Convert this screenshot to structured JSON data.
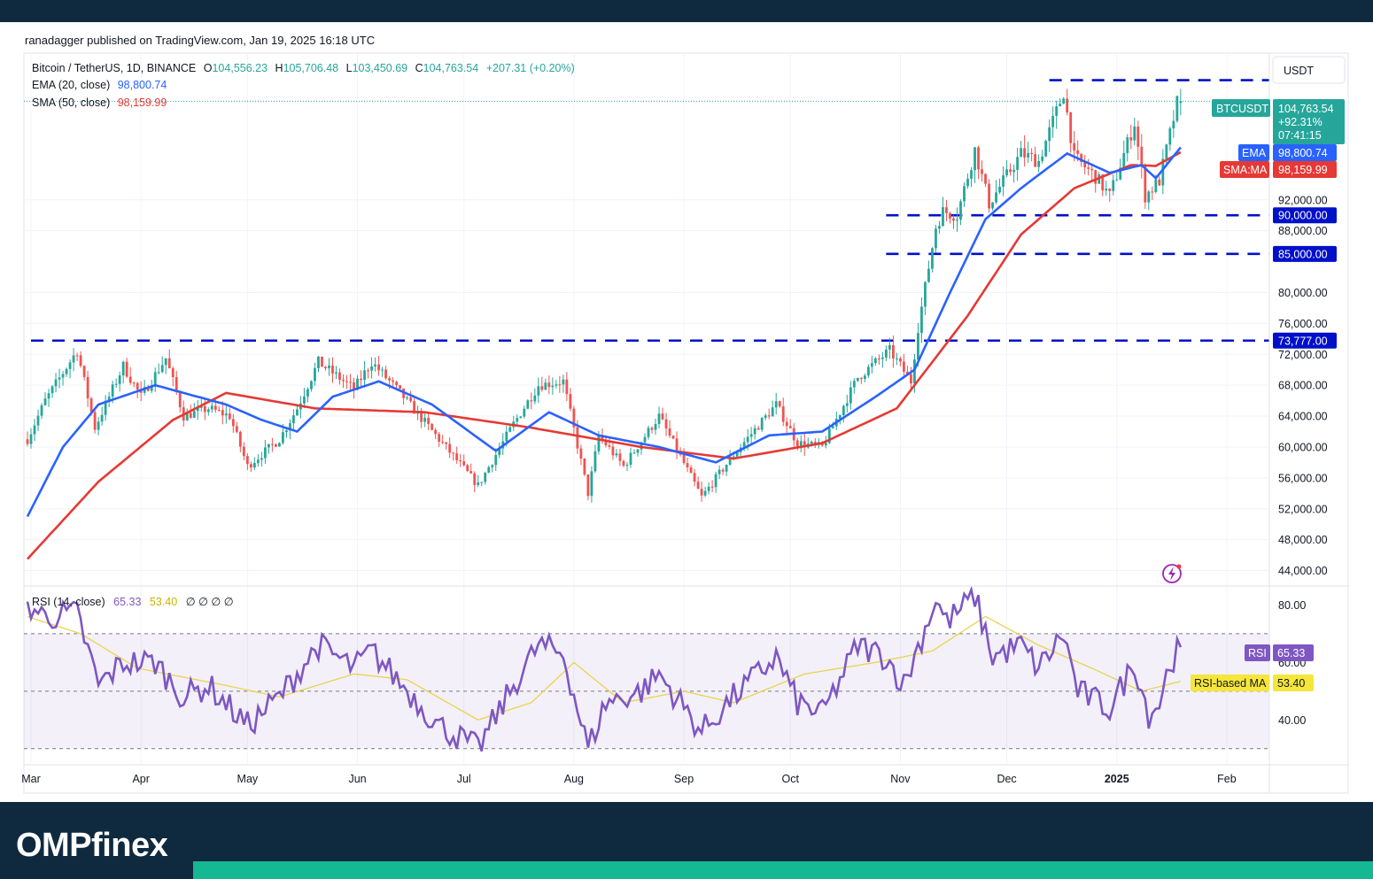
{
  "publication": "ranadagger published on TradingView.com, Jan 19, 2025 16:18 UTC",
  "brand": "OMPfinex",
  "legend": {
    "symbol": "Bitcoin / TetherUS, 1D, BINANCE",
    "o_label": "O",
    "o_value": "104,556.23",
    "h_label": "H",
    "h_value": "105,706.48",
    "l_label": "L",
    "l_value": "103,450.69",
    "c_label": "C",
    "c_value": "104,763.54",
    "change": "+207.31 (+0.20%)",
    "ema_label": "EMA (20, close)",
    "ema_value": "98,800.74",
    "sma_label": "SMA (50, close)",
    "sma_value": "98,159.99"
  },
  "rsi_legend": {
    "label": "RSI (14, close)",
    "value": "65.33",
    "ma_value": "53.40",
    "extras": "∅  ∅  ∅  ∅"
  },
  "currency": "USDT",
  "price_tag": {
    "symbol": "BTCUSDT",
    "price": "104,763.54",
    "pct": "+92.31%",
    "countdown": "07:41:15"
  },
  "ema_tag": {
    "label": "EMA",
    "value": "98,800.74"
  },
  "sma_tag": {
    "label": "SMA:MA",
    "value": "98,159.99"
  },
  "rsi_tag": {
    "label": "RSI",
    "value": "65.33"
  },
  "rsi_ma_tag": {
    "label": "RSI-based MA",
    "value": "53.40"
  },
  "icons": {
    "flash": "flash-icon"
  },
  "colors": {
    "up": "#26a69a",
    "down": "#ef5350",
    "ema": "#2962ff",
    "sma": "#e53935",
    "level": "#0010c8",
    "rsi": "#7e57c2",
    "rsi_ma": "#e8d44d",
    "header": "#0f2a3f",
    "accent": "#14b892"
  },
  "chart_data": {
    "type": "line",
    "title": "Bitcoin / TetherUS, 1D, BINANCE",
    "price_axis_ticks": [
      {
        "value": 92000,
        "label": "92,000.00"
      },
      {
        "value": 88000,
        "label": "88,000.00"
      },
      {
        "value": 80000,
        "label": "80,000.00"
      },
      {
        "value": 76000,
        "label": "76,000.00"
      },
      {
        "value": 72000,
        "label": "72,000.00"
      },
      {
        "value": 68000,
        "label": "68,000.00"
      },
      {
        "value": 64000,
        "label": "64,000.00"
      },
      {
        "value": 60000,
        "label": "60,000.00"
      },
      {
        "value": 56000,
        "label": "56,000.00"
      },
      {
        "value": 52000,
        "label": "52,000.00"
      },
      {
        "value": 48000,
        "label": "48,000.00"
      },
      {
        "value": 44000,
        "label": "44,000.00"
      }
    ],
    "x_axis_ticks": [
      {
        "date": "2024-03-01",
        "label": "Mar"
      },
      {
        "date": "2024-04-01",
        "label": "Apr"
      },
      {
        "date": "2024-05-01",
        "label": "May"
      },
      {
        "date": "2024-06-01",
        "label": "Jun"
      },
      {
        "date": "2024-07-01",
        "label": "Jul"
      },
      {
        "date": "2024-08-01",
        "label": "Aug"
      },
      {
        "date": "2024-09-01",
        "label": "Sep"
      },
      {
        "date": "2024-10-01",
        "label": "Oct"
      },
      {
        "date": "2024-11-01",
        "label": "Nov"
      },
      {
        "date": "2024-12-01",
        "label": "Dec"
      },
      {
        "date": "2025-01-01",
        "label": "2025"
      },
      {
        "date": "2025-02-01",
        "label": "Feb"
      }
    ],
    "x_range": [
      "2024-02-28",
      "2025-02-13"
    ],
    "price_range": [
      42000,
      111000
    ],
    "horizontal_levels": [
      {
        "value": 107500,
        "label": "",
        "from": "2024-12-13",
        "to": "2025-02-14"
      },
      {
        "value": 90000,
        "label": "90,000.00",
        "from": "2024-10-28",
        "to": "2025-02-14"
      },
      {
        "value": 85000,
        "label": "85,000.00",
        "from": "2024-10-28",
        "to": "2025-02-14"
      },
      {
        "value": 73777,
        "label": "73,777.00",
        "from": "2024-03-01",
        "to": "2025-02-14"
      }
    ],
    "price_anchors": [
      [
        "2024-02-29",
        61000
      ],
      [
        "2024-03-05",
        66000
      ],
      [
        "2024-03-14",
        72500
      ],
      [
        "2024-03-19",
        62500
      ],
      [
        "2024-03-27",
        70500
      ],
      [
        "2024-04-01",
        66500
      ],
      [
        "2024-04-08",
        71500
      ],
      [
        "2024-04-13",
        64000
      ],
      [
        "2024-04-20",
        65000
      ],
      [
        "2024-04-26",
        64000
      ],
      [
        "2024-05-01",
        57500
      ],
      [
        "2024-05-10",
        61000
      ],
      [
        "2024-05-15",
        65000
      ],
      [
        "2024-05-21",
        71000
      ],
      [
        "2024-05-31",
        67500
      ],
      [
        "2024-06-05",
        71000
      ],
      [
        "2024-06-13",
        67000
      ],
      [
        "2024-06-24",
        61000
      ],
      [
        "2024-07-05",
        55000
      ],
      [
        "2024-07-15",
        63000
      ],
      [
        "2024-07-22",
        68000
      ],
      [
        "2024-07-29",
        68500
      ],
      [
        "2024-08-05",
        54000
      ],
      [
        "2024-08-08",
        61500
      ],
      [
        "2024-08-15",
        57500
      ],
      [
        "2024-08-25",
        64000
      ],
      [
        "2024-09-06",
        53500
      ],
      [
        "2024-09-15",
        59000
      ],
      [
        "2024-09-27",
        65500
      ],
      [
        "2024-10-03",
        60500
      ],
      [
        "2024-10-10",
        60000
      ],
      [
        "2024-10-20",
        69000
      ],
      [
        "2024-10-29",
        72500
      ],
      [
        "2024-11-04",
        68500
      ],
      [
        "2024-11-06",
        75500
      ],
      [
        "2024-11-11",
        88500
      ],
      [
        "2024-11-13",
        90500
      ],
      [
        "2024-11-17",
        90000
      ],
      [
        "2024-11-22",
        98500
      ],
      [
        "2024-11-26",
        91500
      ],
      [
        "2024-12-05",
        98000
      ],
      [
        "2024-12-10",
        97000
      ],
      [
        "2024-12-17",
        106000
      ],
      [
        "2024-12-20",
        97500
      ],
      [
        "2024-12-26",
        95000
      ],
      [
        "2024-12-30",
        92500
      ],
      [
        "2025-01-06",
        102000
      ],
      [
        "2025-01-09",
        92500
      ],
      [
        "2025-01-13",
        94500
      ],
      [
        "2025-01-16",
        100500
      ],
      [
        "2025-01-18",
        104500
      ],
      [
        "2025-01-19",
        104763.54
      ]
    ],
    "ema_anchors": [
      [
        "2024-02-29",
        51000
      ],
      [
        "2024-03-10",
        60000
      ],
      [
        "2024-03-20",
        65500
      ],
      [
        "2024-04-05",
        68000
      ],
      [
        "2024-04-25",
        65500
      ],
      [
        "2024-05-05",
        63500
      ],
      [
        "2024-05-15",
        62000
      ],
      [
        "2024-05-25",
        66500
      ],
      [
        "2024-06-07",
        68500
      ],
      [
        "2024-06-22",
        65500
      ],
      [
        "2024-07-10",
        59500
      ],
      [
        "2024-07-25",
        64500
      ],
      [
        "2024-08-08",
        61500
      ],
      [
        "2024-08-25",
        60000
      ],
      [
        "2024-09-10",
        58000
      ],
      [
        "2024-09-25",
        61500
      ],
      [
        "2024-10-10",
        62000
      ],
      [
        "2024-10-25",
        66500
      ],
      [
        "2024-11-05",
        70000
      ],
      [
        "2024-11-15",
        80000
      ],
      [
        "2024-11-25",
        89500
      ],
      [
        "2024-12-05",
        93500
      ],
      [
        "2024-12-18",
        98000
      ],
      [
        "2024-12-30",
        95500
      ],
      [
        "2025-01-08",
        96500
      ],
      [
        "2025-01-12",
        94800
      ],
      [
        "2025-01-19",
        98800.74
      ]
    ],
    "sma_anchors": [
      [
        "2024-02-29",
        45500
      ],
      [
        "2024-03-20",
        55500
      ],
      [
        "2024-04-10",
        63500
      ],
      [
        "2024-04-25",
        67000
      ],
      [
        "2024-05-20",
        65000
      ],
      [
        "2024-06-20",
        64500
      ],
      [
        "2024-07-20",
        62500
      ],
      [
        "2024-08-20",
        60000
      ],
      [
        "2024-09-15",
        58500
      ],
      [
        "2024-10-10",
        60500
      ],
      [
        "2024-10-31",
        65000
      ],
      [
        "2024-11-20",
        77000
      ],
      [
        "2024-12-05",
        87500
      ],
      [
        "2024-12-20",
        93500
      ],
      [
        "2025-01-05",
        96500
      ],
      [
        "2025-01-12",
        96400
      ],
      [
        "2025-01-19",
        98159.99
      ]
    ],
    "rsi": {
      "ticks": [
        {
          "value": 80,
          "label": "80.00"
        },
        {
          "value": 60,
          "label": "60.00"
        },
        {
          "value": 40,
          "label": "40.00"
        }
      ],
      "range": [
        25,
        86
      ],
      "band": [
        30,
        70
      ],
      "midline": 50,
      "anchors": [
        [
          "2024-02-29",
          80
        ],
        [
          "2024-03-05",
          76
        ],
        [
          "2024-03-14",
          77
        ],
        [
          "2024-03-20",
          52
        ],
        [
          "2024-03-27",
          60
        ],
        [
          "2024-04-05",
          60
        ],
        [
          "2024-04-13",
          48
        ],
        [
          "2024-04-20",
          52
        ],
        [
          "2024-05-01",
          38
        ],
        [
          "2024-05-10",
          48
        ],
        [
          "2024-05-21",
          66
        ],
        [
          "2024-05-31",
          58
        ],
        [
          "2024-06-05",
          64
        ],
        [
          "2024-06-24",
          38
        ],
        [
          "2024-07-05",
          30
        ],
        [
          "2024-07-15",
          52
        ],
        [
          "2024-07-22",
          66
        ],
        [
          "2024-07-29",
          63
        ],
        [
          "2024-08-05",
          30
        ],
        [
          "2024-08-10",
          46
        ],
        [
          "2024-08-20",
          50
        ],
        [
          "2024-08-25",
          56
        ],
        [
          "2024-09-06",
          36
        ],
        [
          "2024-09-15",
          48
        ],
        [
          "2024-09-27",
          62
        ],
        [
          "2024-10-03",
          46
        ],
        [
          "2024-10-10",
          42
        ],
        [
          "2024-10-20",
          66
        ],
        [
          "2024-10-28",
          62
        ],
        [
          "2024-11-02",
          52
        ],
        [
          "2024-11-11",
          82
        ],
        [
          "2024-11-14",
          74
        ],
        [
          "2024-11-22",
          83
        ],
        [
          "2024-11-27",
          62
        ],
        [
          "2024-12-05",
          66
        ],
        [
          "2024-12-10",
          58
        ],
        [
          "2024-12-17",
          70
        ],
        [
          "2024-12-21",
          50
        ],
        [
          "2024-12-30",
          44
        ],
        [
          "2025-01-06",
          60
        ],
        [
          "2025-01-10",
          42
        ],
        [
          "2025-01-13",
          46
        ],
        [
          "2025-01-16",
          60
        ],
        [
          "2025-01-19",
          65.33
        ]
      ],
      "ma_anchors": [
        [
          "2024-02-29",
          76
        ],
        [
          "2024-03-15",
          70
        ],
        [
          "2024-03-31",
          58
        ],
        [
          "2024-04-25",
          52
        ],
        [
          "2024-05-10",
          48
        ],
        [
          "2024-05-31",
          56
        ],
        [
          "2024-06-15",
          54
        ],
        [
          "2024-07-05",
          40
        ],
        [
          "2024-07-20",
          46
        ],
        [
          "2024-08-01",
          60
        ],
        [
          "2024-08-15",
          46
        ],
        [
          "2024-09-01",
          50
        ],
        [
          "2024-09-15",
          46
        ],
        [
          "2024-10-05",
          56
        ],
        [
          "2024-10-25",
          60
        ],
        [
          "2024-11-10",
          64
        ],
        [
          "2024-11-25",
          76
        ],
        [
          "2024-12-10",
          66
        ],
        [
          "2024-12-25",
          58
        ],
        [
          "2025-01-08",
          50
        ],
        [
          "2025-01-19",
          53.4
        ]
      ]
    }
  }
}
